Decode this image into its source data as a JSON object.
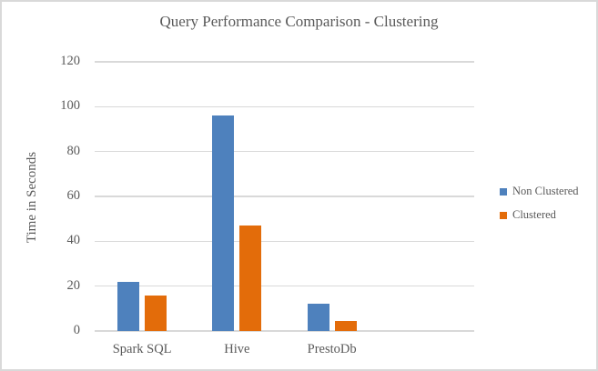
{
  "window": {
    "background_color": "#ffffff",
    "border_color": "#d9d9d9"
  },
  "chart_data": {
    "type": "bar",
    "title": "Query Performance Comparison - Clustering",
    "categories": [
      "Spark SQL",
      "Hive",
      "PrestoDb"
    ],
    "series": [
      {
        "name": "Non Clustered",
        "color": "#4e81bd",
        "values": [
          22,
          96,
          12
        ]
      },
      {
        "name": "Clustered",
        "color": "#e36c0a",
        "values": [
          16,
          47,
          4.5
        ]
      }
    ],
    "xlabel": "",
    "ylabel": "Time in Seconds",
    "ylim": [
      0,
      120
    ],
    "yticks": [
      0,
      20,
      40,
      60,
      80,
      100,
      120
    ],
    "grid": true,
    "legend_position": "right",
    "text_color": "#595959",
    "gridline_color": "#d9d9d9"
  }
}
